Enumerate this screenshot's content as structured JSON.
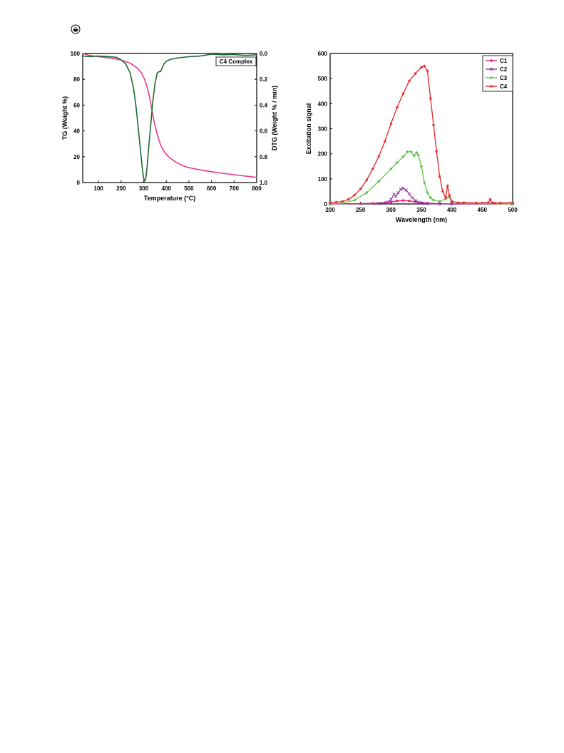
{
  "logo": {
    "icon": "journal-logo-icon"
  },
  "chart_data": [
    {
      "type": "line",
      "title": "",
      "annotation": "C4 Complex",
      "xlabel": "Temperature (°C)",
      "ylabel": "TG (Weight %)",
      "y2label": "DTG (Weight % / min)",
      "xlim": [
        30,
        800
      ],
      "ylim": [
        0,
        100
      ],
      "y2lim": [
        0.0,
        1.0
      ],
      "y2_inverted": true,
      "xticks": [
        100,
        200,
        300,
        400,
        500,
        600,
        700,
        800
      ],
      "yticks": [
        0,
        20,
        40,
        60,
        80,
        100
      ],
      "y2ticks": [
        "0.0",
        "0.2",
        "0.4",
        "0.6",
        "0.8",
        "1.0"
      ],
      "grid": false,
      "series": [
        {
          "axis": "left",
          "color": "#e8398f",
          "x": [
            30,
            60,
            100,
            150,
            200,
            240,
            270,
            290,
            305,
            315,
            325,
            335,
            345,
            360,
            375,
            390,
            410,
            440,
            480,
            520,
            560,
            600,
            650,
            700,
            750,
            800
          ],
          "y": [
            100,
            98.5,
            97.5,
            96.5,
            95,
            92.5,
            89,
            85,
            79.5,
            74,
            67,
            58,
            48,
            37,
            29,
            24,
            20,
            16,
            12.5,
            10.8,
            9.5,
            8.4,
            7.2,
            6.1,
            5,
            4
          ]
        },
        {
          "axis": "right",
          "color": "#1e6b2e",
          "x": [
            30,
            60,
            100,
            150,
            180,
            200,
            220,
            240,
            255,
            265,
            275,
            285,
            295,
            300,
            305,
            310,
            315,
            320,
            330,
            340,
            350,
            360,
            370,
            375,
            380,
            390,
            400,
            420,
            450,
            500,
            550,
            600,
            650,
            700,
            750,
            800
          ],
          "y": [
            0.02,
            0.025,
            0.02,
            0.025,
            0.03,
            0.05,
            0.08,
            0.15,
            0.27,
            0.4,
            0.56,
            0.74,
            0.91,
            0.97,
            0.99,
            0.96,
            0.88,
            0.77,
            0.57,
            0.38,
            0.23,
            0.15,
            0.14,
            0.14,
            0.12,
            0.08,
            0.06,
            0.045,
            0.035,
            0.025,
            0.02,
            0.005,
            0.01,
            0.008,
            0.015,
            0.01
          ]
        }
      ]
    },
    {
      "type": "line",
      "title": "",
      "xlabel": "Wavelength (nm)",
      "ylabel": "Excitation signal",
      "xlim": [
        200,
        500
      ],
      "ylim": [
        0,
        600
      ],
      "xticks": [
        200,
        250,
        300,
        350,
        400,
        450,
        500
      ],
      "yticks": [
        0,
        100,
        200,
        300,
        400,
        500,
        600
      ],
      "grid": false,
      "legend_position": "top-right",
      "series": [
        {
          "name": "C1",
          "color": "#e8157f",
          "marker": "circle",
          "x": [
            200,
            250,
            270,
            290,
            300,
            310,
            320,
            330,
            340,
            350,
            360,
            380,
            400,
            500
          ],
          "y": [
            0,
            1,
            2,
            5,
            8,
            12,
            14,
            12,
            9,
            5,
            3,
            1,
            0,
            0
          ]
        },
        {
          "name": "C2",
          "color": "#8e35a2",
          "marker": "x",
          "x": [
            200,
            280,
            295,
            300,
            305,
            308,
            312,
            316,
            320,
            325,
            330,
            335,
            340,
            345,
            350,
            360,
            380,
            400,
            500
          ],
          "y": [
            0,
            2,
            8,
            18,
            38,
            30,
            45,
            58,
            63,
            55,
            40,
            25,
            14,
            7,
            3,
            1,
            0,
            0,
            0
          ]
        },
        {
          "name": "C3",
          "color": "#5cc446",
          "marker": "diamond",
          "x": [
            200,
            220,
            240,
            260,
            280,
            300,
            310,
            320,
            327,
            333,
            338,
            342,
            345,
            350,
            355,
            360,
            365,
            370,
            380,
            390,
            395,
            400,
            420,
            500
          ],
          "y": [
            0,
            3,
            15,
            45,
            90,
            140,
            165,
            188,
            208,
            208,
            192,
            205,
            195,
            150,
            85,
            45,
            25,
            15,
            10,
            20,
            28,
            10,
            2,
            0
          ]
        },
        {
          "name": "C4",
          "color": "#e8242a",
          "marker": "star",
          "x": [
            200,
            210,
            220,
            230,
            240,
            250,
            260,
            270,
            280,
            290,
            300,
            310,
            320,
            330,
            340,
            350,
            355,
            360,
            365,
            370,
            375,
            380,
            385,
            390,
            393,
            396,
            400,
            410,
            420,
            440,
            460,
            463,
            466,
            470,
            480,
            500
          ],
          "y": [
            5,
            7,
            10,
            18,
            35,
            60,
            95,
            140,
            190,
            250,
            320,
            385,
            440,
            490,
            520,
            545,
            550,
            530,
            420,
            315,
            210,
            110,
            50,
            25,
            72,
            35,
            10,
            5,
            5,
            4,
            5,
            18,
            5,
            4,
            4,
            5
          ]
        }
      ]
    }
  ]
}
